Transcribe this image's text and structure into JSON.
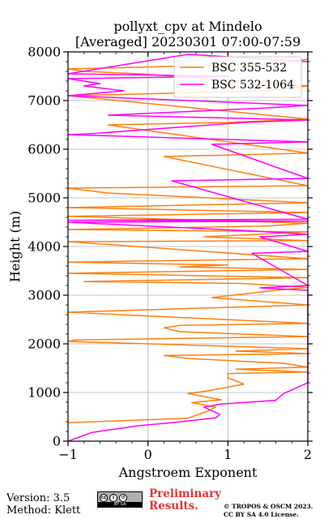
{
  "footer": {
    "version": "Version: 3.5",
    "method": "Method: Klett",
    "preliminary_line1": "Preliminary",
    "preliminary_line2": "Results.",
    "copyright_line1": "© TROPOS & OSCM 2023.",
    "copyright_line2": "CC BY SA 4.0 License."
  },
  "colors": {
    "orange": "#ff7f0e",
    "magenta": "#ff00ff",
    "red": "#e8322f"
  },
  "chart_data": {
    "type": "line",
    "title": "pollyxt_cpv at Mindelo",
    "subtitle": "[Averaged] 20230301 07:00-07:59",
    "xlabel": "Angstroem Exponent",
    "ylabel": "Height (m)",
    "xlim": [
      -1,
      2
    ],
    "ylim": [
      0,
      8000
    ],
    "xticks": [
      -1,
      0,
      1,
      2
    ],
    "yticks": [
      0,
      1000,
      2000,
      3000,
      4000,
      5000,
      6000,
      7000,
      8000
    ],
    "grid": true,
    "legend_position": "top-right",
    "series": [
      {
        "name": "BSC 355-532",
        "color": "#ff7f0e",
        "points": [
          [
            -1,
            380
          ],
          [
            0.5,
            470
          ],
          [
            0.58,
            520
          ],
          [
            0.72,
            600
          ],
          [
            0.85,
            700
          ],
          [
            0.55,
            790
          ],
          [
            0.92,
            850
          ],
          [
            0.75,
            900
          ],
          [
            0.5,
            980
          ],
          [
            0.7,
            1020
          ],
          [
            1.2,
            1170
          ],
          [
            1.1,
            1240
          ],
          [
            1.0,
            1300
          ],
          [
            1.0,
            1390
          ],
          [
            2,
            1420
          ],
          [
            1.1,
            1480
          ],
          [
            2,
            1520
          ],
          [
            1.7,
            1600
          ],
          [
            1.2,
            1640
          ],
          [
            0.5,
            1700
          ],
          [
            0.2,
            1760
          ],
          [
            2,
            1800
          ],
          [
            1.1,
            1850
          ],
          [
            2,
            1900
          ],
          [
            -1,
            2050
          ],
          [
            -0.9,
            2080
          ],
          [
            2,
            2150
          ],
          [
            0.4,
            2250
          ],
          [
            0.2,
            2330
          ],
          [
            0.4,
            2380
          ],
          [
            2,
            2420
          ],
          [
            -1,
            2650
          ],
          [
            2,
            2800
          ],
          [
            0.8,
            2950
          ],
          [
            1.6,
            3100
          ],
          [
            2,
            3160
          ],
          [
            1.2,
            3240
          ],
          [
            -0.8,
            3280
          ],
          [
            2,
            3360
          ],
          [
            -1,
            3450
          ],
          [
            2,
            3530
          ],
          [
            0.4,
            3580
          ],
          [
            1.0,
            3620
          ],
          [
            -1,
            3680
          ],
          [
            2,
            3750
          ],
          [
            -1,
            4100
          ],
          [
            2,
            4120
          ],
          [
            0.7,
            4200
          ],
          [
            2,
            4300
          ],
          [
            -1,
            4350
          ],
          [
            1.5,
            4420
          ],
          [
            2,
            4480
          ],
          [
            -1,
            4620
          ],
          [
            2,
            4700
          ],
          [
            -1,
            4800
          ],
          [
            2,
            4900
          ],
          [
            -0.5,
            5100
          ],
          [
            -1,
            5200
          ],
          [
            2,
            5250
          ],
          [
            0.2,
            5850
          ],
          [
            1.0,
            5880
          ],
          [
            2,
            5920
          ],
          [
            -0.5,
            6500
          ],
          [
            1.0,
            6550
          ],
          [
            2,
            6620
          ],
          [
            -1,
            7100
          ],
          [
            1.5,
            7200
          ],
          [
            2,
            7300
          ],
          [
            -0.1,
            7550
          ],
          [
            -0.8,
            7600
          ],
          [
            -1,
            7650
          ],
          [
            1.5,
            7750
          ],
          [
            2,
            7850
          ]
        ]
      },
      {
        "name": "BSC 532-1064",
        "color": "#ff00ff",
        "points": [
          [
            -1,
            0
          ],
          [
            -0.7,
            180
          ],
          [
            -0.1,
            320
          ],
          [
            0.3,
            380
          ],
          [
            0.85,
            480
          ],
          [
            0.9,
            550
          ],
          [
            0.7,
            700
          ],
          [
            0.9,
            760
          ],
          [
            1.6,
            840
          ],
          [
            1.7,
            980
          ],
          [
            2,
            1200
          ],
          [
            2,
            3100
          ],
          [
            1.4,
            3150
          ],
          [
            2,
            3200
          ],
          [
            1.3,
            3860
          ],
          [
            2,
            3900
          ],
          [
            1.4,
            4200
          ],
          [
            2,
            4250
          ],
          [
            1.3,
            4320
          ],
          [
            -1,
            4500
          ],
          [
            2,
            4520
          ],
          [
            -1,
            4540
          ],
          [
            2,
            4560
          ],
          [
            0.3,
            5350
          ],
          [
            2,
            5400
          ],
          [
            0.8,
            6100
          ],
          [
            2,
            6150
          ],
          [
            -1,
            6300
          ],
          [
            -0.7,
            6320
          ],
          [
            1.2,
            6550
          ],
          [
            2,
            6600
          ],
          [
            -0.5,
            6700
          ],
          [
            1.5,
            6850
          ],
          [
            2,
            6900
          ],
          [
            -1,
            7100
          ],
          [
            -0.3,
            7200
          ],
          [
            -0.8,
            7300
          ],
          [
            -0.6,
            7350
          ],
          [
            -1,
            7450
          ],
          [
            1.0,
            7500
          ],
          [
            -1,
            7550
          ],
          [
            0.5,
            7950
          ],
          [
            2,
            7800
          ]
        ]
      }
    ]
  }
}
